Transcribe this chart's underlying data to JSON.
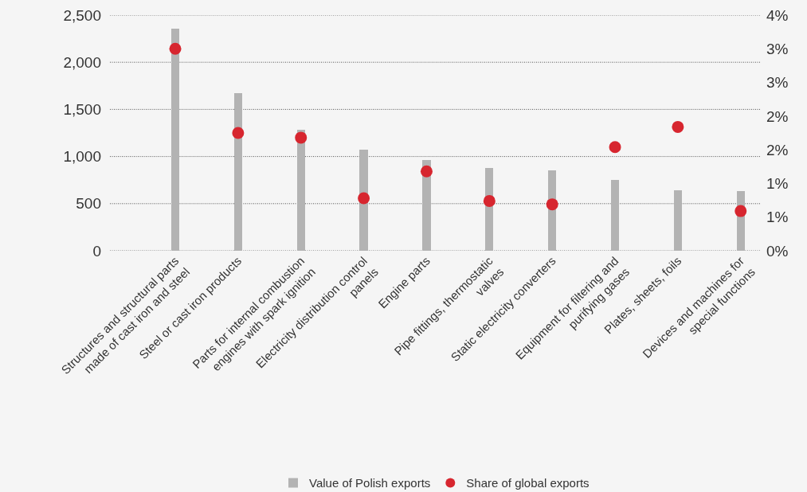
{
  "chart_data": {
    "type": "bar",
    "categories": [
      "Structures and structural parts\nmade of cast iron and steel",
      "Steel or cast iron products",
      "Parts for internal combustion\nengines with spark ignition",
      "Electricity distribution control\npanels",
      "Engine parts",
      "Pipe fittings, thermostatic\nvalves",
      "Static electricity converters",
      "Equipment for filtering and\npurifying gases",
      "Plates, sheets, foils",
      "Devices and machines for\nspecial functions"
    ],
    "series": [
      {
        "name": "Value of Polish exports",
        "color": "#b3b3b3",
        "values": [
          2360,
          1670,
          1280,
          1070,
          960,
          880,
          850,
          750,
          640,
          630
        ]
      },
      {
        "name": "Share of global exports",
        "type": "scatter",
        "color": "#d7262f",
        "axis": "y2",
        "values": [
          3.0,
          1.75,
          1.68,
          0.78,
          1.18,
          0.74,
          0.69,
          1.54,
          1.84,
          0.59
        ]
      }
    ],
    "ylim": [
      0,
      2500
    ],
    "yticks": [
      0,
      500,
      {
        "value": 1000,
        "label": "1,000"
      },
      {
        "value": 1500,
        "label": "1,500"
      },
      {
        "value": 2000,
        "label": "2,000"
      },
      {
        "value": 2500,
        "label": "2,500"
      }
    ],
    "y2lim": [
      0,
      3.5
    ],
    "y2ticks": [
      {
        "value": 0,
        "label": "0%"
      },
      {
        "value": 0.5,
        "label": "1%"
      },
      {
        "value": 1.0,
        "label": "1%"
      },
      {
        "value": 1.5,
        "label": "2%"
      },
      {
        "value": 2.0,
        "label": "2%"
      },
      {
        "value": 2.5,
        "label": "3%"
      },
      {
        "value": 3.0,
        "label": "3%"
      },
      {
        "value": 3.5,
        "label": "4%"
      }
    ],
    "grid": "y",
    "legend": "bottom",
    "marker": "circle"
  }
}
